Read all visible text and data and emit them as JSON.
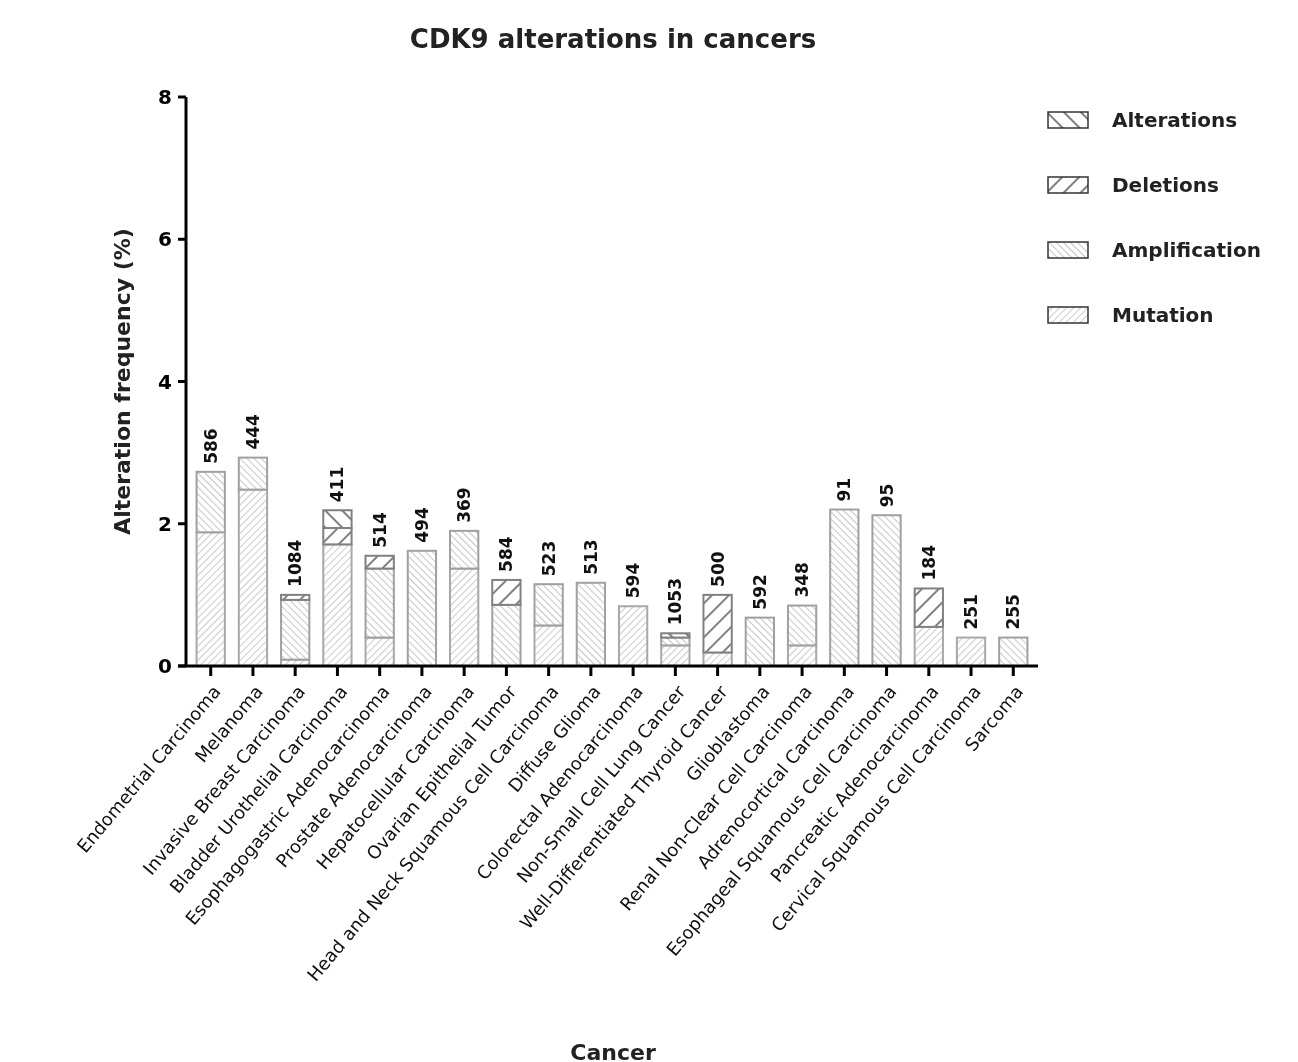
{
  "chart_data": {
    "type": "bar",
    "title": "CDK9 alterations in cancers",
    "xlabel": "Cancer",
    "ylabel": "Alteration frequency (%)",
    "categories": [
      "Endometrial Carcinoma",
      "Melanoma",
      "Invasive Breast Carcinoma",
      "Bladder Urothelial Carcinoma",
      "Esophagogastric Adenocarcinoma",
      "Prostate Adenocarcinoma",
      "Hepatocellular Carcinoma",
      "Ovarian Epithelial Tumor",
      "Head and Neck Squamous Cell Carcinoma",
      "Diffuse Glioma",
      "Colorectal Adenocarcinoma",
      "Non-Small Cell Lung Cancer",
      "Well-Differentiated Thyroid Cancer",
      "Glioblastoma",
      "Renal Non-Clear Cell Carcinoma",
      "Adrenocortical Carcinoma",
      "Esophageal Squamous Cell Carcinoma",
      "Pancreatic Adenocarcinoma",
      "Cervical Squamous Cell Carcinoma",
      "Sarcoma"
    ],
    "series": [
      {
        "name": "Mutation",
        "color": "#a8a8a8",
        "values": [
          1.88,
          2.48,
          0.09,
          1.71,
          0.4,
          0,
          1.37,
          0,
          0.57,
          0,
          0.84,
          0.29,
          0.19,
          0,
          0.29,
          0,
          0,
          0.55,
          0.4,
          0
        ]
      },
      {
        "name": "Amplification",
        "color": "#a0a0a0",
        "values": [
          0.85,
          0.45,
          0.84,
          0,
          0.97,
          1.62,
          0.53,
          0.86,
          0.58,
          1.17,
          0,
          0.11,
          0,
          0.68,
          0.56,
          2.2,
          2.12,
          0,
          0,
          0.4
        ]
      },
      {
        "name": "Deletions",
        "color": "#808080",
        "values": [
          0,
          0,
          0.07,
          0.23,
          0.18,
          0,
          0,
          0.35,
          0,
          0,
          0,
          0,
          0.81,
          0,
          0,
          0,
          0,
          0.54,
          0,
          0
        ]
      },
      {
        "name": "Alterations",
        "color": "#808080",
        "values": [
          0,
          0,
          0,
          0.25,
          0,
          0,
          0,
          0,
          0,
          0,
          0,
          0.06,
          0,
          0,
          0,
          0,
          0,
          0,
          0,
          0
        ]
      }
    ],
    "stacked": true,
    "ylim": [
      0,
      8
    ],
    "yticks": [
      0,
      2,
      4,
      6,
      8
    ],
    "grid": false,
    "legend": "top right",
    "annotations": [
      {
        "text": "586",
        "x": "Endometrial Carcinoma",
        "y": 2.73
      },
      {
        "text": "444",
        "x": "Melanoma",
        "y": 2.93
      },
      {
        "text": "1084",
        "x": "Invasive Breast Carcinoma",
        "y": 1.0
      },
      {
        "text": "411",
        "x": "Bladder Urothelial Carcinoma",
        "y": 2.19
      },
      {
        "text": "514",
        "x": "Esophagogastric Adenocarcinoma",
        "y": 1.55
      },
      {
        "text": "494",
        "x": "Prostate Adenocarcinoma",
        "y": 1.62
      },
      {
        "text": "369",
        "x": "Hepatocellular Carcinoma",
        "y": 1.9
      },
      {
        "text": "584",
        "x": "Ovarian Epithelial Tumor",
        "y": 1.21
      },
      {
        "text": "523",
        "x": "Head and Neck Squamous Cell Carcinoma",
        "y": 1.15
      },
      {
        "text": "513",
        "x": "Diffuse Glioma",
        "y": 1.17
      },
      {
        "text": "594",
        "x": "Colorectal Adenocarcinoma",
        "y": 0.84
      },
      {
        "text": "1053",
        "x": "Non-Small Cell Lung Cancer",
        "y": 0.46
      },
      {
        "text": "500",
        "x": "Well-Differentiated Thyroid Cancer",
        "y": 1.0
      },
      {
        "text": "592",
        "x": "Glioblastoma",
        "y": 0.68
      },
      {
        "text": "348",
        "x": "Renal Non-Clear Cell Carcinoma",
        "y": 0.85
      },
      {
        "text": "91",
        "x": "Adrenocortical Carcinoma",
        "y": 2.2
      },
      {
        "text": "95",
        "x": "Esophageal Squamous Cell Carcinoma",
        "y": 2.12
      },
      {
        "text": "184",
        "x": "Pancreatic Adenocarcinoma",
        "y": 1.09
      },
      {
        "text": "251",
        "x": "Cervical Squamous Cell Carcinoma",
        "y": 0.4
      },
      {
        "text": "255",
        "x": "Sarcoma",
        "y": 0.4
      }
    ]
  }
}
